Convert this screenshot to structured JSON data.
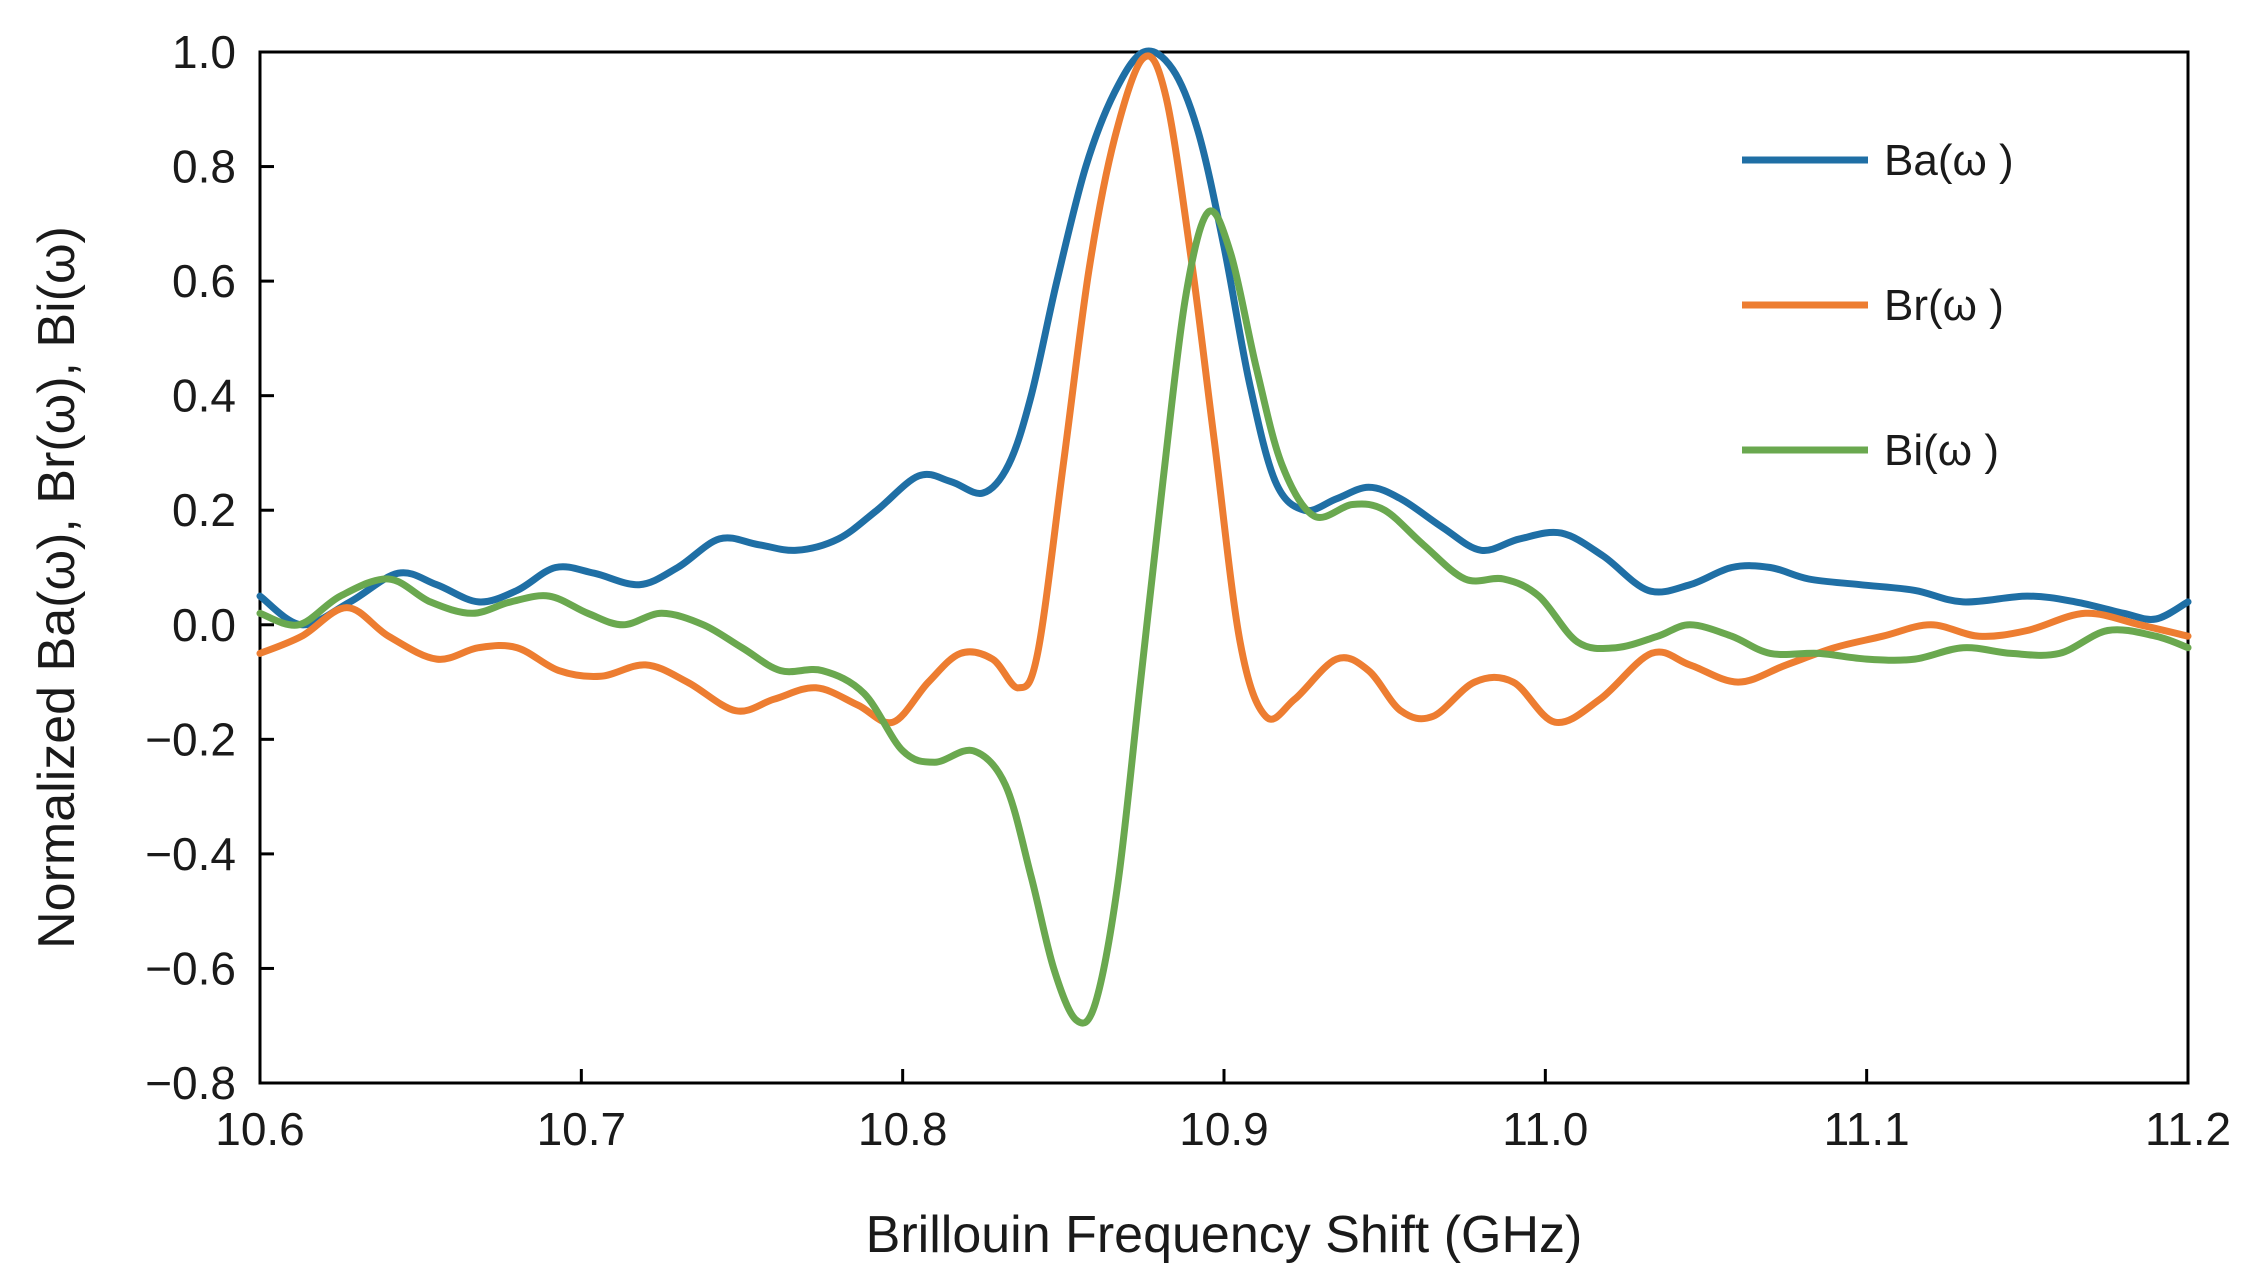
{
  "chart_data": {
    "type": "line",
    "title": "",
    "xlabel": "Brillouin Frequency Shift  (GHz)",
    "ylabel": "Normalized  Ba(ω), Br(ω), Bi(ω)",
    "xlim": [
      10.6,
      11.2
    ],
    "ylim": [
      -0.8,
      1.0
    ],
    "xticks": [
      "10.6",
      "10.7",
      "10.8",
      "10.9",
      "11.0",
      "11.1",
      "11.2"
    ],
    "yticks": [
      "1.0",
      "0.8",
      "0.6",
      "0.4",
      "0.2",
      "0.0",
      "−0.2",
      "−0.4",
      "−0.6",
      "−0.8"
    ],
    "grid": false,
    "legend": {
      "placement": "top-right"
    },
    "series": [
      {
        "name": "Ba(ω )",
        "color": "#1f6fa5",
        "points": [
          [
            10.6,
            0.05
          ],
          [
            10.613,
            0.0
          ],
          [
            10.628,
            0.04
          ],
          [
            10.643,
            0.09
          ],
          [
            10.655,
            0.07
          ],
          [
            10.668,
            0.04
          ],
          [
            10.68,
            0.06
          ],
          [
            10.692,
            0.1
          ],
          [
            10.704,
            0.09
          ],
          [
            10.718,
            0.07
          ],
          [
            10.73,
            0.1
          ],
          [
            10.743,
            0.15
          ],
          [
            10.755,
            0.14
          ],
          [
            10.767,
            0.13
          ],
          [
            10.78,
            0.15
          ],
          [
            10.792,
            0.2
          ],
          [
            10.805,
            0.26
          ],
          [
            10.815,
            0.25
          ],
          [
            10.825,
            0.23
          ],
          [
            10.833,
            0.28
          ],
          [
            10.84,
            0.4
          ],
          [
            10.848,
            0.6
          ],
          [
            10.857,
            0.8
          ],
          [
            10.866,
            0.93
          ],
          [
            10.875,
            1.0
          ],
          [
            10.884,
            0.97
          ],
          [
            10.892,
            0.86
          ],
          [
            10.9,
            0.66
          ],
          [
            10.908,
            0.42
          ],
          [
            10.916,
            0.25
          ],
          [
            10.925,
            0.2
          ],
          [
            10.935,
            0.22
          ],
          [
            10.945,
            0.24
          ],
          [
            10.955,
            0.22
          ],
          [
            10.968,
            0.17
          ],
          [
            10.98,
            0.13
          ],
          [
            10.992,
            0.15
          ],
          [
            11.005,
            0.16
          ],
          [
            11.018,
            0.12
          ],
          [
            11.032,
            0.06
          ],
          [
            11.045,
            0.07
          ],
          [
            11.058,
            0.1
          ],
          [
            11.07,
            0.1
          ],
          [
            11.082,
            0.08
          ],
          [
            11.098,
            0.07
          ],
          [
            11.115,
            0.06
          ],
          [
            11.13,
            0.04
          ],
          [
            11.15,
            0.05
          ],
          [
            11.165,
            0.04
          ],
          [
            11.18,
            0.02
          ],
          [
            11.19,
            0.01
          ],
          [
            11.2,
            0.04
          ]
        ]
      },
      {
        "name": "Br(ω )",
        "color": "#ed7d31",
        "points": [
          [
            10.6,
            -0.05
          ],
          [
            10.613,
            -0.02
          ],
          [
            10.627,
            0.03
          ],
          [
            10.64,
            -0.02
          ],
          [
            10.655,
            -0.06
          ],
          [
            10.668,
            -0.04
          ],
          [
            10.68,
            -0.04
          ],
          [
            10.693,
            -0.08
          ],
          [
            10.706,
            -0.09
          ],
          [
            10.72,
            -0.07
          ],
          [
            10.733,
            -0.1
          ],
          [
            10.748,
            -0.15
          ],
          [
            10.76,
            -0.13
          ],
          [
            10.773,
            -0.11
          ],
          [
            10.786,
            -0.14
          ],
          [
            10.797,
            -0.17
          ],
          [
            10.808,
            -0.1
          ],
          [
            10.818,
            -0.05
          ],
          [
            10.828,
            -0.06
          ],
          [
            10.836,
            -0.11
          ],
          [
            10.842,
            -0.05
          ],
          [
            10.85,
            0.28
          ],
          [
            10.858,
            0.62
          ],
          [
            10.866,
            0.85
          ],
          [
            10.875,
            0.99
          ],
          [
            10.882,
            0.92
          ],
          [
            10.89,
            0.63
          ],
          [
            10.897,
            0.32
          ],
          [
            10.905,
            -0.03
          ],
          [
            10.913,
            -0.16
          ],
          [
            10.922,
            -0.13
          ],
          [
            10.935,
            -0.06
          ],
          [
            10.945,
            -0.08
          ],
          [
            10.955,
            -0.15
          ],
          [
            10.965,
            -0.16
          ],
          [
            10.978,
            -0.1
          ],
          [
            10.99,
            -0.1
          ],
          [
            11.003,
            -0.17
          ],
          [
            11.017,
            -0.13
          ],
          [
            11.033,
            -0.05
          ],
          [
            11.045,
            -0.07
          ],
          [
            11.06,
            -0.1
          ],
          [
            11.075,
            -0.07
          ],
          [
            11.09,
            -0.04
          ],
          [
            11.105,
            -0.02
          ],
          [
            11.12,
            0.0
          ],
          [
            11.135,
            -0.02
          ],
          [
            11.15,
            -0.01
          ],
          [
            11.168,
            0.02
          ],
          [
            11.185,
            0.0
          ],
          [
            11.2,
            -0.02
          ]
        ]
      },
      {
        "name": "Bi(ω )",
        "color": "#6aa84f",
        "points": [
          [
            10.6,
            0.02
          ],
          [
            10.612,
            0.0
          ],
          [
            10.625,
            0.05
          ],
          [
            10.64,
            0.08
          ],
          [
            10.653,
            0.04
          ],
          [
            10.666,
            0.02
          ],
          [
            10.678,
            0.04
          ],
          [
            10.69,
            0.05
          ],
          [
            10.702,
            0.02
          ],
          [
            10.713,
            0.0
          ],
          [
            10.725,
            0.02
          ],
          [
            10.738,
            0.0
          ],
          [
            10.75,
            -0.04
          ],
          [
            10.762,
            -0.08
          ],
          [
            10.775,
            -0.08
          ],
          [
            10.788,
            -0.12
          ],
          [
            10.8,
            -0.22
          ],
          [
            10.81,
            -0.24
          ],
          [
            10.822,
            -0.22
          ],
          [
            10.832,
            -0.28
          ],
          [
            10.84,
            -0.44
          ],
          [
            10.847,
            -0.6
          ],
          [
            10.854,
            -0.69
          ],
          [
            10.86,
            -0.66
          ],
          [
            10.867,
            -0.45
          ],
          [
            10.874,
            -0.1
          ],
          [
            10.881,
            0.25
          ],
          [
            10.888,
            0.57
          ],
          [
            10.895,
            0.72
          ],
          [
            10.902,
            0.65
          ],
          [
            10.91,
            0.45
          ],
          [
            10.918,
            0.28
          ],
          [
            10.928,
            0.19
          ],
          [
            10.94,
            0.21
          ],
          [
            10.95,
            0.2
          ],
          [
            10.962,
            0.14
          ],
          [
            10.975,
            0.08
          ],
          [
            10.987,
            0.08
          ],
          [
            10.998,
            0.05
          ],
          [
            11.01,
            -0.03
          ],
          [
            11.022,
            -0.04
          ],
          [
            11.035,
            -0.02
          ],
          [
            11.045,
            0.0
          ],
          [
            11.058,
            -0.02
          ],
          [
            11.07,
            -0.05
          ],
          [
            11.085,
            -0.05
          ],
          [
            11.1,
            -0.06
          ],
          [
            11.115,
            -0.06
          ],
          [
            11.13,
            -0.04
          ],
          [
            11.145,
            -0.05
          ],
          [
            11.16,
            -0.05
          ],
          [
            11.175,
            -0.01
          ],
          [
            11.19,
            -0.02
          ],
          [
            11.2,
            -0.04
          ]
        ]
      }
    ]
  }
}
